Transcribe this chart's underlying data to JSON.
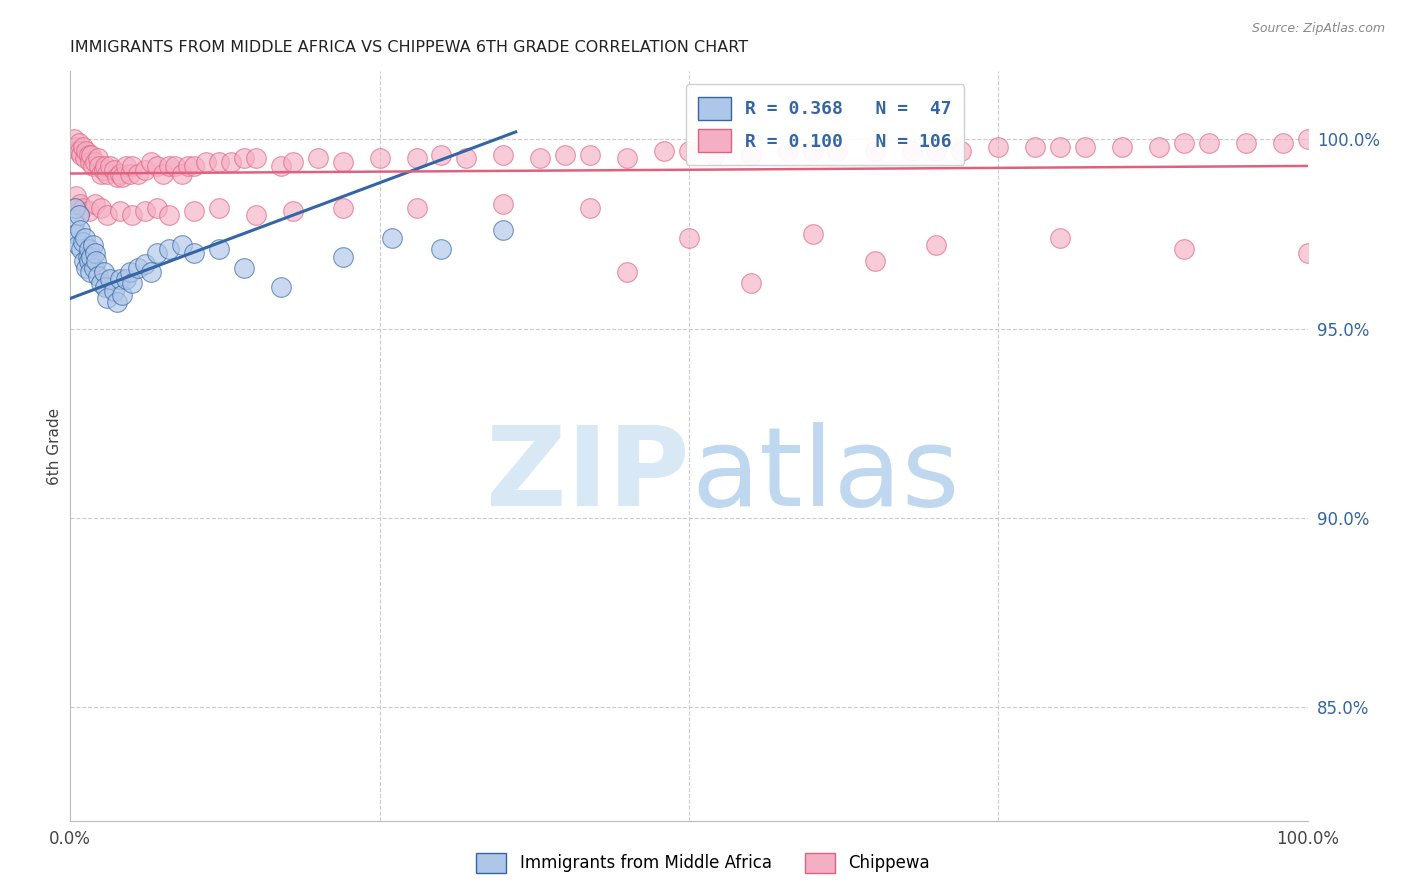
{
  "title": "IMMIGRANTS FROM MIDDLE AFRICA VS CHIPPEWA 6TH GRADE CORRELATION CHART",
  "source": "Source: ZipAtlas.com",
  "ylabel": "6th Grade",
  "ylabel_right_labels": [
    "100.0%",
    "95.0%",
    "90.0%",
    "85.0%"
  ],
  "ylabel_right_values": [
    1.0,
    0.95,
    0.9,
    0.85
  ],
  "xlim": [
    0.0,
    1.0
  ],
  "ylim": [
    0.82,
    1.018
  ],
  "legend_blue_r": "R = 0.368",
  "legend_blue_n": "N =  47",
  "legend_pink_r": "R = 0.100",
  "legend_pink_n": "N = 106",
  "blue_color": "#aec6e8",
  "pink_color": "#f4afc4",
  "blue_line_color": "#3465a4",
  "pink_line_color": "#e0607e",
  "watermark_zip_color": "#d8e8f5",
  "watermark_atlas_color": "#c0d8ef",
  "background_color": "#ffffff",
  "grid_color": "#cccccc",
  "blue_line_x": [
    0.0,
    0.36
  ],
  "blue_line_y": [
    0.958,
    1.002
  ],
  "pink_line_x": [
    0.0,
    1.0
  ],
  "pink_line_y": [
    0.991,
    0.993
  ],
  "blue_x": [
    0.003,
    0.004,
    0.005,
    0.006,
    0.007,
    0.008,
    0.009,
    0.01,
    0.011,
    0.012,
    0.013,
    0.014,
    0.015,
    0.015,
    0.016,
    0.017,
    0.018,
    0.019,
    0.02,
    0.021,
    0.022,
    0.025,
    0.027,
    0.028,
    0.03,
    0.032,
    0.035,
    0.038,
    0.04,
    0.042,
    0.045,
    0.048,
    0.05,
    0.055,
    0.06,
    0.065,
    0.07,
    0.08,
    0.09,
    0.1,
    0.12,
    0.14,
    0.17,
    0.22,
    0.26,
    0.3,
    0.35
  ],
  "blue_y": [
    0.978,
    0.982,
    0.975,
    0.972,
    0.98,
    0.976,
    0.971,
    0.973,
    0.968,
    0.974,
    0.966,
    0.969,
    0.971,
    0.968,
    0.965,
    0.969,
    0.972,
    0.966,
    0.97,
    0.968,
    0.964,
    0.962,
    0.965,
    0.961,
    0.958,
    0.963,
    0.96,
    0.957,
    0.963,
    0.959,
    0.963,
    0.965,
    0.962,
    0.966,
    0.967,
    0.965,
    0.97,
    0.971,
    0.972,
    0.97,
    0.971,
    0.966,
    0.961,
    0.969,
    0.974,
    0.971,
    0.976
  ],
  "pink_x": [
    0.003,
    0.005,
    0.006,
    0.007,
    0.008,
    0.009,
    0.01,
    0.012,
    0.013,
    0.015,
    0.016,
    0.017,
    0.018,
    0.02,
    0.022,
    0.023,
    0.025,
    0.027,
    0.028,
    0.03,
    0.032,
    0.035,
    0.038,
    0.04,
    0.042,
    0.045,
    0.048,
    0.05,
    0.055,
    0.06,
    0.065,
    0.07,
    0.075,
    0.08,
    0.085,
    0.09,
    0.095,
    0.1,
    0.11,
    0.12,
    0.13,
    0.14,
    0.15,
    0.17,
    0.18,
    0.2,
    0.22,
    0.25,
    0.28,
    0.3,
    0.32,
    0.35,
    0.38,
    0.4,
    0.42,
    0.45,
    0.48,
    0.5,
    0.52,
    0.55,
    0.58,
    0.6,
    0.62,
    0.65,
    0.68,
    0.7,
    0.72,
    0.75,
    0.78,
    0.8,
    0.82,
    0.85,
    0.88,
    0.9,
    0.92,
    0.95,
    0.98,
    1.0,
    0.005,
    0.008,
    0.01,
    0.015,
    0.02,
    0.025,
    0.03,
    0.04,
    0.05,
    0.06,
    0.07,
    0.08,
    0.1,
    0.12,
    0.15,
    0.18,
    0.22,
    0.28,
    0.35,
    0.42,
    0.5,
    0.6,
    0.7,
    0.8,
    0.9,
    1.0,
    0.45,
    0.55,
    0.65
  ],
  "pink_y": [
    1.0,
    0.998,
    0.997,
    0.999,
    0.997,
    0.996,
    0.998,
    0.995,
    0.997,
    0.996,
    0.994,
    0.996,
    0.993,
    0.994,
    0.995,
    0.993,
    0.991,
    0.992,
    0.993,
    0.991,
    0.993,
    0.992,
    0.99,
    0.991,
    0.99,
    0.993,
    0.991,
    0.993,
    0.991,
    0.992,
    0.994,
    0.993,
    0.991,
    0.993,
    0.993,
    0.991,
    0.993,
    0.993,
    0.994,
    0.994,
    0.994,
    0.995,
    0.995,
    0.993,
    0.994,
    0.995,
    0.994,
    0.995,
    0.995,
    0.996,
    0.995,
    0.996,
    0.995,
    0.996,
    0.996,
    0.995,
    0.997,
    0.997,
    0.996,
    0.996,
    0.997,
    0.997,
    0.997,
    0.997,
    0.997,
    0.997,
    0.997,
    0.998,
    0.998,
    0.998,
    0.998,
    0.998,
    0.998,
    0.999,
    0.999,
    0.999,
    0.999,
    1.0,
    0.985,
    0.983,
    0.982,
    0.981,
    0.983,
    0.982,
    0.98,
    0.981,
    0.98,
    0.981,
    0.982,
    0.98,
    0.981,
    0.982,
    0.98,
    0.981,
    0.982,
    0.982,
    0.983,
    0.982,
    0.974,
    0.975,
    0.972,
    0.974,
    0.971,
    0.97,
    0.965,
    0.962,
    0.968
  ]
}
